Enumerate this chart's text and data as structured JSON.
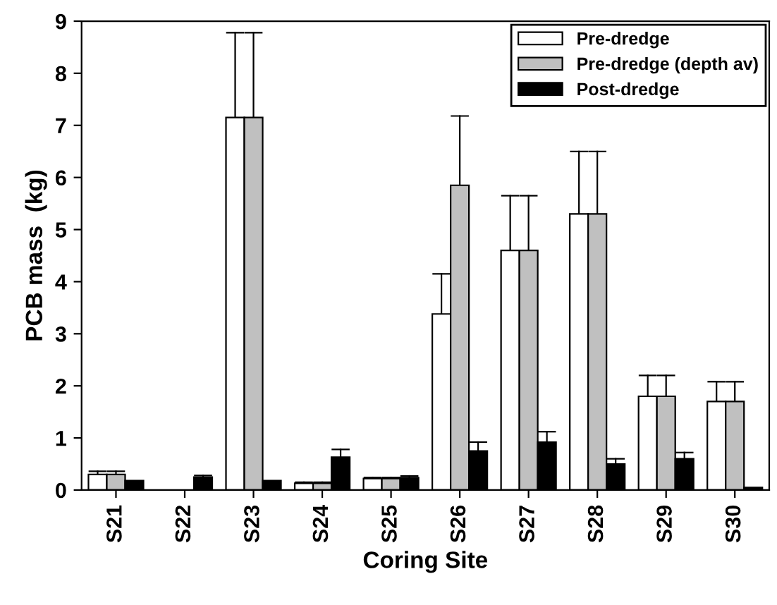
{
  "chart_data": {
    "type": "bar",
    "xlabel": "Coring Site",
    "ylabel": "PCB mass  (kg)",
    "categories": [
      "S21",
      "S22",
      "S23",
      "S24",
      "S25",
      "S26",
      "S27",
      "S28",
      "S29",
      "S30"
    ],
    "series": [
      {
        "name": "Pre-dredge",
        "color": "#ffffff",
        "values": [
          0.3,
          null,
          7.15,
          0.13,
          0.22,
          3.38,
          4.6,
          5.3,
          1.8,
          1.7
        ],
        "errors": [
          [
            0.3,
            0.36
          ],
          null,
          [
            7.15,
            8.78
          ],
          [
            0.13,
            0.15
          ],
          [
            0.22,
            0.24
          ],
          [
            3.38,
            4.15
          ],
          [
            4.6,
            5.65
          ],
          [
            5.3,
            6.5
          ],
          [
            1.8,
            2.2
          ],
          [
            1.7,
            2.08
          ]
        ]
      },
      {
        "name": "Pre-dredge (depth av)",
        "color": "#c0c0c0",
        "values": [
          0.3,
          null,
          7.15,
          0.13,
          0.22,
          5.85,
          4.6,
          5.3,
          1.8,
          1.7
        ],
        "errors": [
          [
            0.3,
            0.36
          ],
          null,
          [
            7.15,
            8.78
          ],
          [
            0.13,
            0.15
          ],
          [
            0.22,
            0.24
          ],
          [
            5.85,
            7.18
          ],
          [
            4.6,
            5.65
          ],
          [
            5.3,
            6.5
          ],
          [
            1.8,
            2.2
          ],
          [
            1.7,
            2.08
          ]
        ]
      },
      {
        "name": "Post-dredge",
        "color": "#000000",
        "values": [
          0.18,
          0.25,
          0.18,
          0.63,
          0.24,
          0.75,
          0.92,
          0.5,
          0.6,
          0.05
        ],
        "errors": [
          null,
          [
            0.25,
            0.28
          ],
          null,
          [
            0.63,
            0.78
          ],
          [
            0.24,
            0.27
          ],
          [
            0.75,
            0.92
          ],
          [
            0.92,
            1.12
          ],
          [
            0.5,
            0.6
          ],
          [
            0.6,
            0.72
          ],
          null
        ]
      }
    ],
    "ylim": [
      0,
      9
    ],
    "yticks": [
      0,
      1,
      2,
      3,
      4,
      5,
      6,
      7,
      8,
      9
    ],
    "legend": "top right",
    "grid": false
  }
}
